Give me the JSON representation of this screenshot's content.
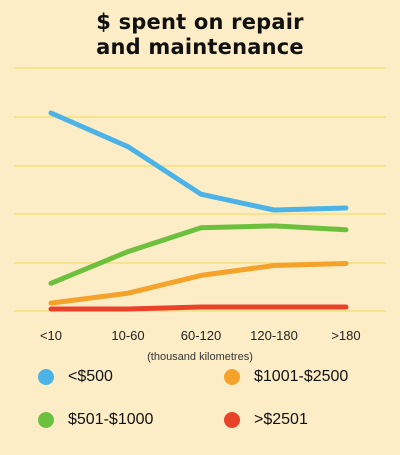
{
  "chart_data": {
    "type": "line",
    "title_lines": [
      "$ spent on repair",
      "and maintenance"
    ],
    "xlabel": "(thousand kilometres)",
    "ylabel": "",
    "categories": [
      "<10",
      "10-60",
      "60-120",
      "120-180",
      ">180"
    ],
    "ylim": [
      0,
      100
    ],
    "grid": true,
    "legend_position": "bottom",
    "series": [
      {
        "name": "<$500",
        "color": "#4bb3e8",
        "values": [
          100,
          83,
          59,
          51,
          52
        ]
      },
      {
        "name": "$501-$1000",
        "color": "#6cc03e",
        "values": [
          14,
          30,
          42,
          43,
          41
        ]
      },
      {
        "name": "$1001-$2500",
        "color": "#f5a22b",
        "values": [
          4,
          9,
          18,
          23,
          24
        ]
      },
      {
        "name": ">$2501",
        "color": "#e8422a",
        "values": [
          1,
          1,
          2,
          2,
          2
        ]
      }
    ]
  }
}
